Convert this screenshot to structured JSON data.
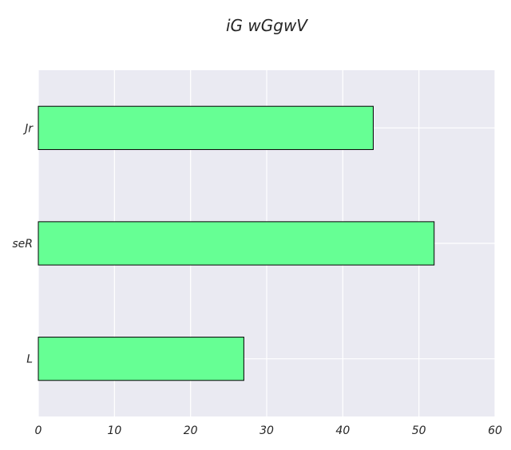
{
  "chart_data": {
    "type": "bar",
    "orientation": "horizontal",
    "title": "iG wGgwV",
    "xlabel": "",
    "ylabel": "",
    "categories": [
      "Jr",
      "seR",
      "L"
    ],
    "values": [
      44,
      52,
      27
    ],
    "xlim": [
      0,
      60
    ],
    "xticks": [
      0,
      10,
      20,
      30,
      40,
      50,
      60
    ],
    "grid": true,
    "colors": {
      "bar_fill": "#66ff94",
      "bar_edge": "#000000",
      "plot_background": "#eaeaf2",
      "grid": "#ffffff"
    }
  }
}
